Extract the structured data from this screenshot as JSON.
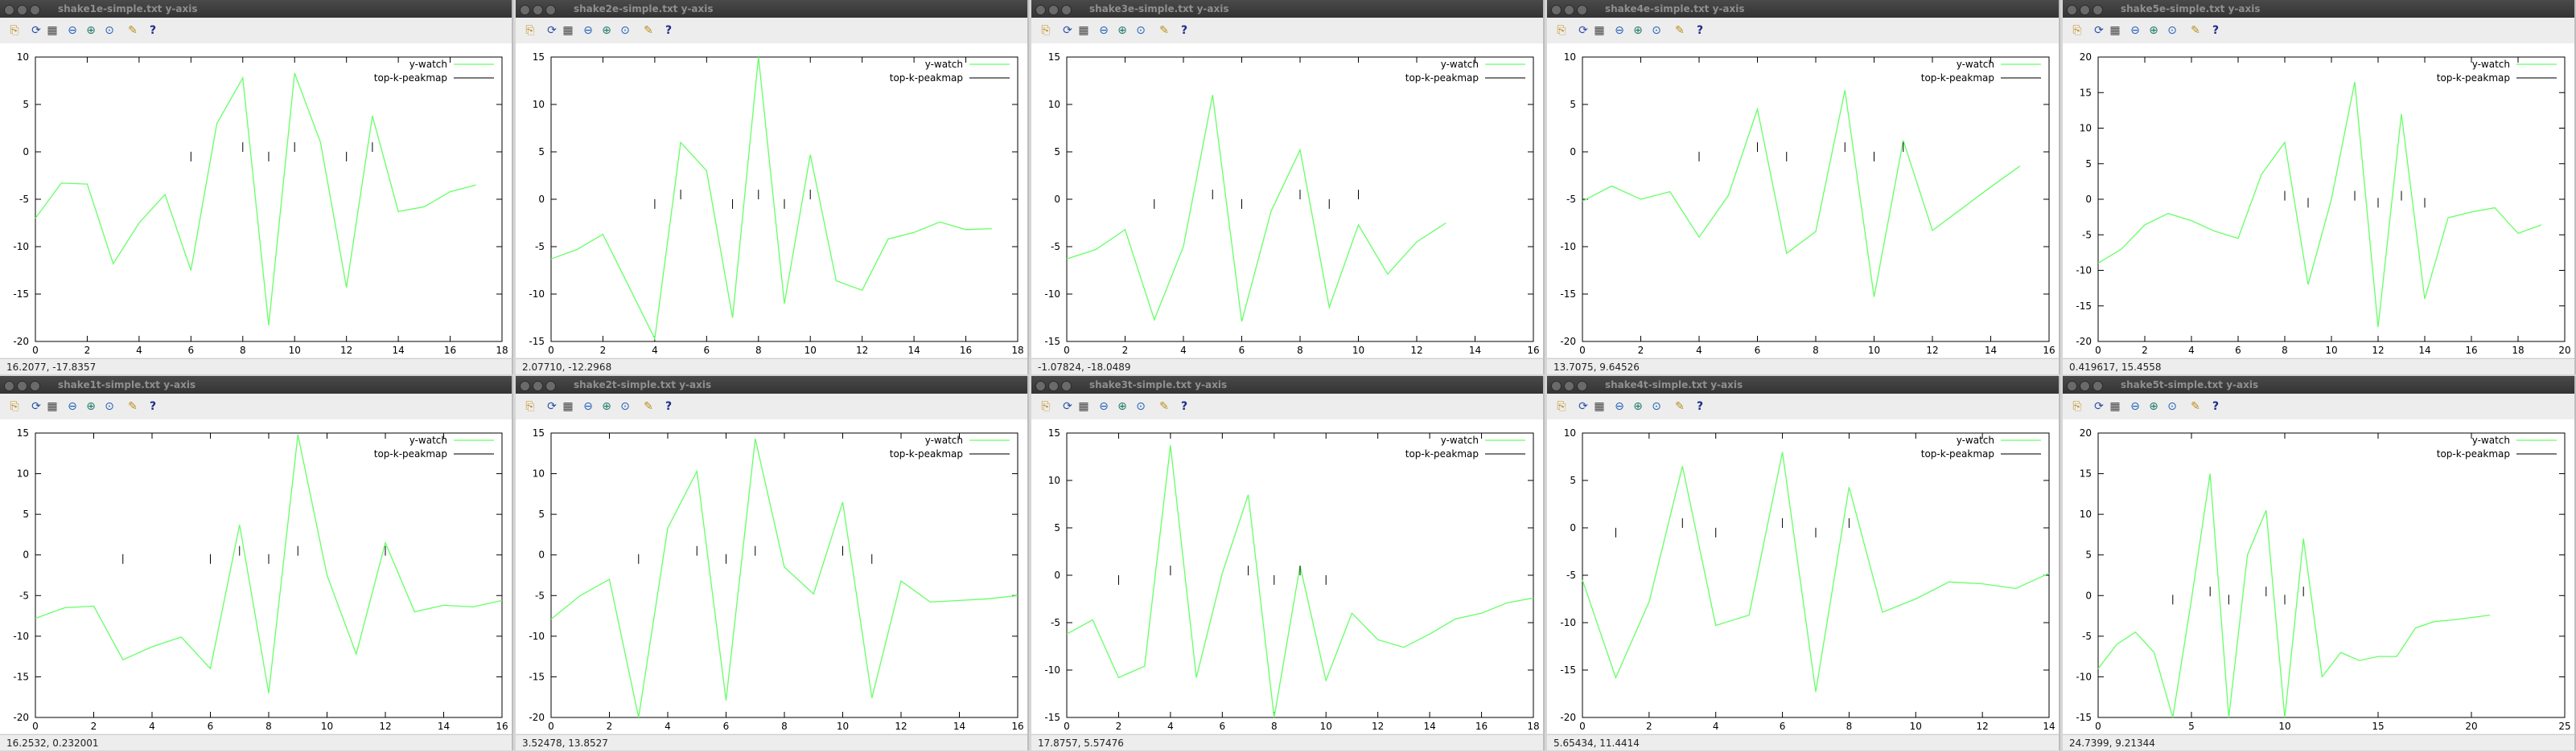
{
  "legend": {
    "y_watch": "y-watch",
    "top_k": "top-k-peakmap"
  },
  "colors": {
    "line": "#66ff66",
    "marker": "#000000",
    "legend_line2": "#2a2a2a"
  },
  "toolbar_icons": [
    "copy-icon",
    "replot-icon",
    "grid-icon",
    "zoom-previous-icon",
    "zoom-next-icon",
    "autoscale-icon",
    "ruler-icon",
    "help-icon"
  ],
  "windows": [
    {
      "title": "shake1e-simple.txt y-axis",
      "status": "16.2077, -17.8357"
    },
    {
      "title": "shake2e-simple.txt y-axis",
      "status": "2.07710, -12.2968"
    },
    {
      "title": "shake3e-simple.txt y-axis",
      "status": "-1.07824, -18.0489"
    },
    {
      "title": "shake4e-simple.txt y-axis",
      "status": "13.7075, 9.64526"
    },
    {
      "title": "shake5e-simple.txt y-axis",
      "status": "0.419617, 15.4558"
    },
    {
      "title": "shake1t-simple.txt y-axis",
      "status": "16.2532, 0.232001"
    },
    {
      "title": "shake2t-simple.txt y-axis",
      "status": "3.52478, 13.8527"
    },
    {
      "title": "shake3t-simple.txt y-axis",
      "status": "17.8757, 5.57476"
    },
    {
      "title": "shake4t-simple.txt y-axis",
      "status": "5.65434, 11.4414"
    },
    {
      "title": "shake5t-simple.txt y-axis",
      "status": "24.7399, 9.21344"
    }
  ],
  "chart_data": [
    {
      "type": "line",
      "title": "shake1e-simple.txt y-axis",
      "xlim": [
        0,
        18
      ],
      "ylim": [
        -20,
        10
      ],
      "xticks": [
        0,
        2,
        4,
        6,
        8,
        10,
        12,
        14,
        16,
        18
      ],
      "yticks": [
        -20,
        -15,
        -10,
        -5,
        0,
        5,
        10
      ],
      "series": [
        {
          "name": "y-watch",
          "x": [
            0,
            1,
            2,
            3,
            4,
            5,
            6,
            7,
            8,
            9,
            10,
            11,
            12,
            13,
            14,
            15,
            16,
            17
          ],
          "y": [
            -7,
            -3.3,
            -3.4,
            -11.8,
            -7.5,
            -4.5,
            -12.5,
            3,
            7.8,
            -18.3,
            8.3,
            1,
            -14.3,
            3.8,
            -6.3,
            -5.8,
            -4.2,
            -3.5
          ]
        },
        {
          "name": "top-k-peakmap",
          "x": [
            6,
            8,
            9,
            10,
            12,
            13
          ],
          "y": [
            -0.5,
            0.5,
            -0.5,
            0.5,
            -0.5,
            0.5
          ]
        }
      ]
    },
    {
      "type": "line",
      "title": "shake2e-simple.txt y-axis",
      "xlim": [
        0,
        18
      ],
      "ylim": [
        -15,
        15
      ],
      "xticks": [
        0,
        2,
        4,
        6,
        8,
        10,
        12,
        14,
        16,
        18
      ],
      "yticks": [
        -15,
        -10,
        -5,
        0,
        5,
        10,
        15
      ],
      "series": [
        {
          "name": "y-watch",
          "x": [
            0,
            1,
            2,
            3,
            4,
            5,
            6,
            7,
            8,
            9,
            10,
            11,
            12,
            13,
            14,
            15,
            16,
            17
          ],
          "y": [
            -6.3,
            -5.3,
            -3.7,
            -9.2,
            -14.7,
            6,
            3,
            -12.5,
            15,
            -11,
            4.7,
            -8.6,
            -9.6,
            -4.2,
            -3.5,
            -2.4,
            -3.2,
            -3.1
          ]
        },
        {
          "name": "top-k-peakmap",
          "x": [
            4,
            5,
            7,
            8,
            9,
            10
          ],
          "y": [
            -0.5,
            0.5,
            -0.5,
            0.5,
            -0.5,
            0.5
          ]
        }
      ]
    },
    {
      "type": "line",
      "title": "shake3e-simple.txt y-axis",
      "xlim": [
        0,
        16
      ],
      "ylim": [
        -15,
        15
      ],
      "xticks": [
        0,
        2,
        4,
        6,
        8,
        10,
        12,
        14,
        16
      ],
      "yticks": [
        -15,
        -10,
        -5,
        0,
        5,
        10,
        15
      ],
      "series": [
        {
          "name": "y-watch",
          "x": [
            0,
            1,
            2,
            3,
            4,
            5,
            6,
            7,
            8,
            9,
            10,
            11,
            12,
            13
          ],
          "y": [
            -6.3,
            -5.3,
            -3.2,
            -12.7,
            -5,
            11,
            -12.9,
            -1.3,
            5.2,
            -11.4,
            -2.7,
            -7.9,
            -4.5,
            -2.5
          ]
        },
        {
          "name": "top-k-peakmap",
          "x": [
            3,
            5,
            6,
            8,
            9,
            10
          ],
          "y": [
            -0.5,
            0.5,
            -0.5,
            0.5,
            -0.5,
            0.5
          ]
        }
      ]
    },
    {
      "type": "line",
      "title": "shake4e-simple.txt y-axis",
      "xlim": [
        0,
        16
      ],
      "ylim": [
        -20,
        10
      ],
      "xticks": [
        0,
        2,
        4,
        6,
        8,
        10,
        12,
        14,
        16
      ],
      "yticks": [
        -20,
        -15,
        -10,
        -5,
        0,
        5,
        10
      ],
      "series": [
        {
          "name": "y-watch",
          "x": [
            0,
            1,
            2,
            3,
            4,
            5,
            6,
            7,
            8,
            9,
            10,
            11,
            12,
            13,
            14,
            15
          ],
          "y": [
            -5.2,
            -3.6,
            -5,
            -4.2,
            -9,
            -4.6,
            4.5,
            -10.7,
            -8.4,
            6.5,
            -15.3,
            1.2,
            -8.3,
            -6,
            -3.7,
            -1.5
          ]
        },
        {
          "name": "top-k-peakmap",
          "x": [
            4,
            6,
            7,
            9,
            10,
            11
          ],
          "y": [
            -0.5,
            0.5,
            -0.5,
            0.5,
            -0.5,
            0.5
          ]
        }
      ]
    },
    {
      "type": "line",
      "title": "shake5e-simple.txt y-axis",
      "xlim": [
        0,
        20
      ],
      "ylim": [
        -20,
        20
      ],
      "xticks": [
        0,
        2,
        4,
        6,
        8,
        10,
        12,
        14,
        16,
        18,
        20
      ],
      "yticks": [
        -20,
        -15,
        -10,
        -5,
        0,
        5,
        10,
        15,
        20
      ],
      "series": [
        {
          "name": "y-watch",
          "x": [
            0,
            1,
            2,
            3,
            4,
            5,
            6,
            7,
            8,
            9,
            10,
            11,
            12,
            13,
            14,
            15,
            16,
            17,
            18,
            19
          ],
          "y": [
            -9,
            -7,
            -3.6,
            -2,
            -3,
            -4.5,
            -5.5,
            3.5,
            8,
            -12,
            0,
            16.5,
            -18,
            12,
            -14,
            -2.6,
            -1.8,
            -1.2,
            -4.8,
            -3.6
          ]
        },
        {
          "name": "top-k-peakmap",
          "x": [
            8,
            9,
            11,
            12,
            13,
            14
          ],
          "y": [
            0.5,
            -0.5,
            0.5,
            -0.5,
            0.5,
            -0.5
          ]
        }
      ]
    },
    {
      "type": "line",
      "title": "shake1t-simple.txt y-axis",
      "xlim": [
        0,
        16
      ],
      "ylim": [
        -20,
        15
      ],
      "xticks": [
        0,
        2,
        4,
        6,
        8,
        10,
        12,
        14,
        16
      ],
      "yticks": [
        -20,
        -15,
        -10,
        -5,
        0,
        5,
        10,
        15
      ],
      "series": [
        {
          "name": "y-watch",
          "x": [
            0,
            1,
            2,
            3,
            4,
            5,
            6,
            7,
            8,
            9,
            10,
            11,
            12,
            13,
            14,
            15,
            16
          ],
          "y": [
            -7.8,
            -6.5,
            -6.3,
            -12.9,
            -11.3,
            -10.1,
            -14,
            3.7,
            -17,
            14.8,
            -2.5,
            -12.2,
            1.5,
            -7,
            -6.2,
            -6.4,
            -5.6
          ]
        },
        {
          "name": "top-k-peakmap",
          "x": [
            3,
            6,
            7,
            8,
            9,
            12
          ],
          "y": [
            -0.5,
            -0.5,
            0.5,
            -0.5,
            0.5,
            0.5
          ]
        }
      ]
    },
    {
      "type": "line",
      "title": "shake2t-simple.txt y-axis",
      "xlim": [
        0,
        16
      ],
      "ylim": [
        -20,
        15
      ],
      "xticks": [
        0,
        2,
        4,
        6,
        8,
        10,
        12,
        14,
        16
      ],
      "yticks": [
        -20,
        -15,
        -10,
        -5,
        0,
        5,
        10,
        15
      ],
      "series": [
        {
          "name": "y-watch",
          "x": [
            0,
            1,
            2,
            3,
            4,
            5,
            6,
            7,
            8,
            9,
            10,
            11,
            12,
            13,
            14,
            15,
            16
          ],
          "y": [
            -7.9,
            -5,
            -3,
            -20,
            3.3,
            10.3,
            -17.9,
            14.3,
            -1.5,
            -4.8,
            6.5,
            -17.6,
            -3.2,
            -5.8,
            -5.6,
            -5.4,
            -5
          ]
        },
        {
          "name": "top-k-peakmap",
          "x": [
            3,
            5,
            6,
            7,
            10,
            11
          ],
          "y": [
            -0.5,
            0.5,
            -0.5,
            0.5,
            0.5,
            -0.5
          ]
        }
      ]
    },
    {
      "type": "line",
      "title": "shake3t-simple.txt y-axis",
      "xlim": [
        0,
        18
      ],
      "ylim": [
        -15,
        15
      ],
      "xticks": [
        0,
        2,
        4,
        6,
        8,
        10,
        12,
        14,
        16,
        18
      ],
      "yticks": [
        -15,
        -10,
        -5,
        0,
        5,
        10,
        15
      ],
      "series": [
        {
          "name": "y-watch",
          "x": [
            0,
            1,
            2,
            3,
            4,
            5,
            6,
            7,
            8,
            9,
            10,
            11,
            12,
            13,
            14,
            15,
            16,
            17,
            18
          ],
          "y": [
            -6.2,
            -4.7,
            -10.8,
            -9.6,
            13.7,
            -10.8,
            0.2,
            8.5,
            -15,
            1,
            -11.1,
            -4,
            -6.8,
            -7.6,
            -6.2,
            -4.6,
            -4,
            -2.9,
            -2.4
          ]
        },
        {
          "name": "top-k-peakmap",
          "x": [
            2,
            4,
            7,
            8,
            9,
            10
          ],
          "y": [
            -0.5,
            0.5,
            0.5,
            -0.5,
            0.5,
            -0.5
          ]
        }
      ]
    },
    {
      "type": "line",
      "title": "shake4t-simple.txt y-axis",
      "xlim": [
        0,
        14
      ],
      "ylim": [
        -20,
        10
      ],
      "xticks": [
        0,
        2,
        4,
        6,
        8,
        10,
        12,
        14
      ],
      "yticks": [
        -20,
        -15,
        -10,
        -5,
        0,
        5,
        10
      ],
      "series": [
        {
          "name": "y-watch",
          "x": [
            0,
            1,
            2,
            3,
            4,
            5,
            6,
            7,
            8,
            9,
            10,
            11,
            12,
            13,
            14
          ],
          "y": [
            -5.5,
            -15.8,
            -7.8,
            6.5,
            -10.3,
            -9.2,
            8,
            -17.3,
            4.3,
            -8.9,
            -7.5,
            -5.7,
            -5.9,
            -6.4,
            -4.8
          ]
        },
        {
          "name": "top-k-peakmap",
          "x": [
            1,
            3,
            4,
            6,
            7,
            8
          ],
          "y": [
            -0.5,
            0.5,
            -0.5,
            0.5,
            -0.5,
            0.5
          ]
        }
      ]
    },
    {
      "type": "line",
      "title": "shake5t-simple.txt y-axis",
      "xlim": [
        0,
        25
      ],
      "ylim": [
        -15,
        20
      ],
      "xticks": [
        0,
        5,
        10,
        15,
        20,
        25
      ],
      "yticks": [
        -15,
        -10,
        -5,
        0,
        5,
        10,
        15,
        20
      ],
      "series": [
        {
          "name": "y-watch",
          "x": [
            0,
            1,
            2,
            3,
            4,
            5,
            6,
            7,
            8,
            9,
            10,
            11,
            12,
            13,
            14,
            15,
            16,
            17,
            18,
            19,
            20,
            21
          ],
          "y": [
            -9,
            -6,
            -4.5,
            -7,
            -15,
            -0.5,
            15,
            -15,
            5,
            10.5,
            -15,
            7,
            -10,
            -7,
            -8,
            -7.5,
            -7.5,
            -4,
            -3.2,
            -3,
            -2.7,
            -2.4
          ]
        },
        {
          "name": "top-k-peakmap",
          "x": [
            4,
            6,
            7,
            9,
            10,
            11
          ],
          "y": [
            -0.5,
            0.5,
            -0.5,
            0.5,
            -0.5,
            0.5
          ]
        }
      ]
    }
  ]
}
